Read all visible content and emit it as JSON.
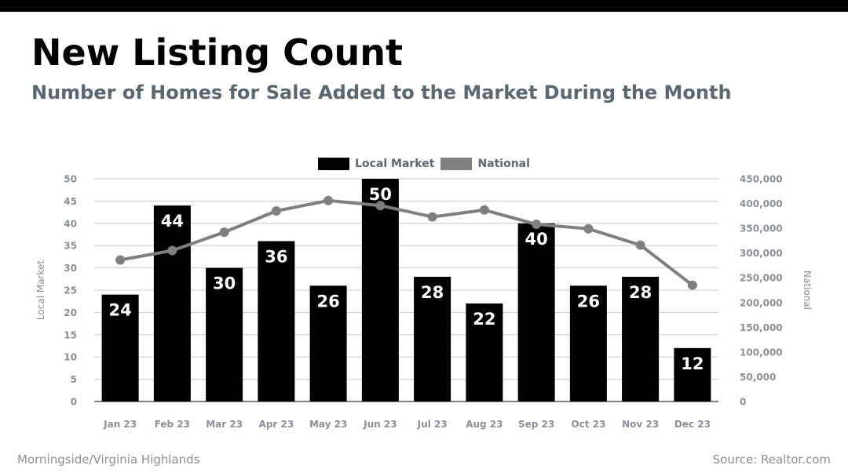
{
  "header": {
    "title": "New Listing Count",
    "subtitle": "Number of Homes for Sale Added to the Market During the Month"
  },
  "footer": {
    "location": "Morningside/Virginia Highlands",
    "source": "Source: Realtor.com"
  },
  "colors": {
    "bar": "#000000",
    "line": "#7f7f7f",
    "axis_text": "#8a8f94",
    "subtitle": "#5b6770",
    "grid": "#cccccc"
  },
  "chart_data": {
    "type": "bar",
    "title": "New Listing Count",
    "categories": [
      "Jan 23",
      "Feb 23",
      "Mar 23",
      "Apr 23",
      "May 23",
      "Jun 23",
      "Jul 23",
      "Aug 23",
      "Sep 23",
      "Oct 23",
      "Nov 23",
      "Dec 23"
    ],
    "series": [
      {
        "name": "Local Market",
        "type": "bar",
        "axis": "left",
        "values": [
          24,
          44,
          30,
          36,
          26,
          50,
          28,
          22,
          40,
          26,
          28,
          12
        ]
      },
      {
        "name": "National",
        "type": "line",
        "axis": "right",
        "values": [
          286000,
          305000,
          342000,
          385000,
          406000,
          396000,
          373000,
          387000,
          358000,
          349000,
          316000,
          235000
        ]
      }
    ],
    "ylabel": "Local Market",
    "y2label": "National",
    "ylim": [
      0,
      50
    ],
    "y2lim": [
      0,
      450000
    ],
    "yticks": [
      "0",
      "5",
      "10",
      "15",
      "20",
      "25",
      "30",
      "35",
      "40",
      "45",
      "50"
    ],
    "y2ticks": [
      "0",
      "50,000",
      "100,000",
      "150,000",
      "200,000",
      "250,000",
      "300,000",
      "350,000",
      "400,000",
      "450,000"
    ],
    "legend": "top-center",
    "grid": true
  }
}
